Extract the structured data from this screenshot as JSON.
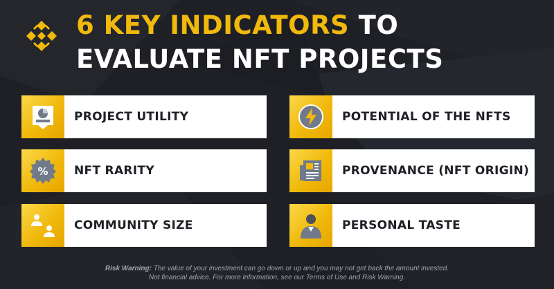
{
  "title": {
    "highlight": "6 KEY INDICATORS",
    "line1_rest": " TO",
    "line2": "EVALUATE NFT PROJECTS"
  },
  "colors": {
    "background": "#1e2026",
    "accent": "#f0b90b",
    "card": "#ffffff",
    "text_dark": "#1e2026"
  },
  "indicators": [
    {
      "label": "PROJECT UTILITY",
      "icon": "presentation-chart-icon"
    },
    {
      "label": "NFT RARITY",
      "icon": "percent-badge-icon"
    },
    {
      "label": "COMMUNITY SIZE",
      "icon": "people-icon"
    },
    {
      "label": "POTENTIAL OF THE NFTS",
      "icon": "lightning-bolt-icon"
    },
    {
      "label": "PROVENANCE (NFT ORIGIN)",
      "icon": "document-icon"
    },
    {
      "label": "PERSONAL TASTE",
      "icon": "person-icon"
    }
  ],
  "footer": {
    "line1_label": "Risk Warning:",
    "line1_text": " The value of your investment can go down or up and you may not get back the amount invested.",
    "line2": "Not financial advice. For more information, see our Terms of Use and Risk Warning."
  }
}
